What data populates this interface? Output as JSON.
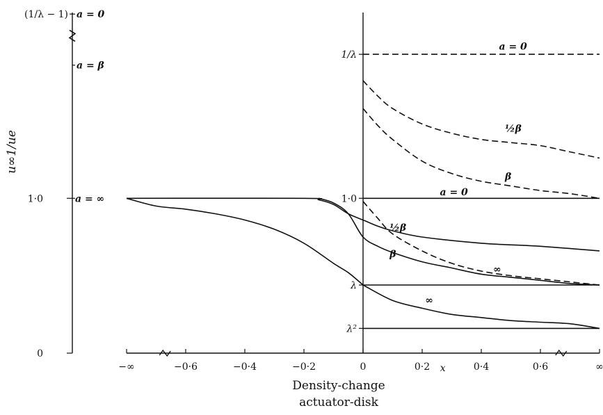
{
  "chart_data": {
    "type": "line",
    "xlabel": "x",
    "ylabel": "u∞1/ue",
    "caption_lines": [
      "Density-change",
      "actuator-disk"
    ],
    "x_ticks": [
      "−∞",
      "−0·6",
      "−0·4",
      "−0·2",
      "0",
      "0·2",
      "0·4",
      "0·6",
      "∞"
    ],
    "xlim": [
      -0.8,
      0.8
    ],
    "ylim": [
      0,
      2.2
    ],
    "y_ticks": [
      {
        "label": "0",
        "y": 0
      },
      {
        "label": "1·0",
        "y": 1.0
      }
    ],
    "y_side_labels": [
      {
        "label": "(1/λ − 1)",
        "y": 2.19
      },
      {
        "label": "a = 0",
        "y": 2.19
      },
      {
        "label": "a = β",
        "y": 1.86
      },
      {
        "label": "a = ∞",
        "y": 1.0
      }
    ],
    "inner_axis_labels": [
      {
        "label": "1/λ",
        "y": 1.93
      },
      {
        "label": "1·0",
        "y": 1.0
      },
      {
        "label": "λ",
        "y": 0.44
      },
      {
        "label": "λ²",
        "y": 0.16
      }
    ],
    "reference_levels": {
      "inv_lambda": 1.93,
      "one": 1.0,
      "lambda": 0.44,
      "lambda_sq": 0.16
    },
    "series": [
      {
        "name": "a = 0",
        "style": "dashed",
        "x": [
          0,
          0.2,
          0.4,
          0.6,
          0.8
        ],
        "y": [
          1.93,
          1.93,
          1.93,
          1.93,
          1.93
        ]
      },
      {
        "name": "½β",
        "style": "dashed",
        "x": [
          0,
          0.05,
          0.1,
          0.2,
          0.3,
          0.4,
          0.5,
          0.6,
          0.7,
          0.8
        ],
        "y": [
          1.76,
          1.66,
          1.58,
          1.48,
          1.42,
          1.38,
          1.36,
          1.34,
          1.3,
          1.26
        ]
      },
      {
        "name": "β",
        "style": "dashed",
        "x": [
          0,
          0.05,
          0.1,
          0.2,
          0.3,
          0.4,
          0.5,
          0.6,
          0.7,
          0.8
        ],
        "y": [
          1.58,
          1.47,
          1.38,
          1.24,
          1.16,
          1.11,
          1.08,
          1.05,
          1.03,
          1.0
        ]
      },
      {
        "name": "a = 0",
        "style": "solid",
        "x": [
          0,
          0.8
        ],
        "y": [
          1.0,
          1.0
        ]
      },
      {
        "name": "∞",
        "style": "dashed",
        "x": [
          0,
          0.05,
          0.1,
          0.2,
          0.3,
          0.4,
          0.5,
          0.6,
          0.7,
          0.8
        ],
        "y": [
          0.98,
          0.87,
          0.77,
          0.66,
          0.58,
          0.53,
          0.5,
          0.48,
          0.46,
          0.44
        ]
      },
      {
        "name": "½β",
        "style": "solid",
        "x": [
          -0.8,
          -0.2,
          -0.15,
          -0.1,
          -0.05,
          0,
          0.05,
          0.1,
          0.2,
          0.4,
          0.6,
          0.8
        ],
        "y": [
          1.0,
          1.0,
          0.99,
          0.96,
          0.9,
          0.86,
          0.82,
          0.79,
          0.75,
          0.71,
          0.69,
          0.66
        ]
      },
      {
        "name": "β",
        "style": "solid",
        "x": [
          -0.15,
          -0.1,
          -0.05,
          0,
          0.05,
          0.1,
          0.2,
          0.3,
          0.4,
          0.5,
          0.6,
          0.7,
          0.8
        ],
        "y": [
          1.0,
          0.97,
          0.9,
          0.75,
          0.69,
          0.65,
          0.59,
          0.55,
          0.51,
          0.49,
          0.47,
          0.45,
          0.44
        ]
      },
      {
        "name": "a = ∞",
        "style": "solid",
        "x": [
          -0.8,
          -0.7,
          -0.6,
          -0.5,
          -0.4,
          -0.3,
          -0.2,
          -0.1,
          -0.05,
          0
        ],
        "y": [
          1.0,
          0.95,
          0.93,
          0.9,
          0.86,
          0.8,
          0.71,
          0.58,
          0.52,
          0.44
        ]
      },
      {
        "name": "λ",
        "style": "solid",
        "x": [
          0,
          0.8
        ],
        "y": [
          0.44,
          0.44
        ]
      },
      {
        "name": "∞",
        "style": "solid",
        "x": [
          0,
          0.1,
          0.2,
          0.3,
          0.4,
          0.5,
          0.6,
          0.7,
          0.8
        ],
        "y": [
          0.44,
          0.34,
          0.29,
          0.25,
          0.23,
          0.21,
          0.2,
          0.19,
          0.16
        ]
      },
      {
        "name": "λ²",
        "style": "solid",
        "x": [
          0,
          0.8
        ],
        "y": [
          0.16,
          0.16
        ]
      }
    ],
    "curve_labels": [
      {
        "label": "a = 0",
        "x": 0.46,
        "y": 1.96
      },
      {
        "label": "½β",
        "x": 0.48,
        "y": 1.43
      },
      {
        "label": "β",
        "x": 0.48,
        "y": 1.12
      },
      {
        "label": "a = 0",
        "x": 0.26,
        "y": 1.02
      },
      {
        "label": "½β",
        "x": 0.09,
        "y": 0.79
      },
      {
        "label": "β",
        "x": 0.09,
        "y": 0.62
      },
      {
        "label": "∞",
        "x": 0.44,
        "y": 0.52
      },
      {
        "label": "∞",
        "x": 0.21,
        "y": 0.32
      }
    ],
    "grid": false,
    "legend": "none"
  }
}
